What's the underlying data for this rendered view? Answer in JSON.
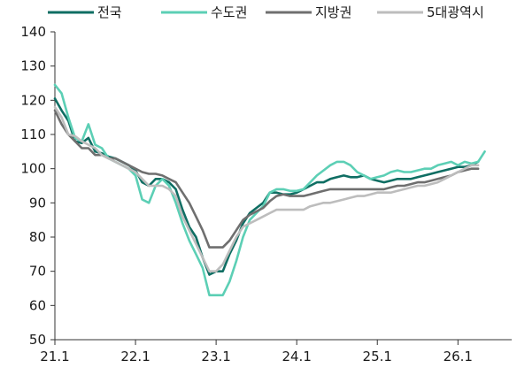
{
  "chart_data": {
    "type": "line",
    "title": "",
    "xlabel": "",
    "ylabel": "",
    "ylim": [
      50,
      140
    ],
    "yticks": [
      50,
      60,
      70,
      80,
      90,
      100,
      110,
      120,
      130,
      140
    ],
    "xlim": [
      0,
      68
    ],
    "xticks": [
      {
        "label": "21.1",
        "x": 0
      },
      {
        "label": "22.1",
        "x": 12
      },
      {
        "label": "23.1",
        "x": 24
      },
      {
        "label": "24.1",
        "x": 36
      },
      {
        "label": "25.1",
        "x": 48
      },
      {
        "label": "26.1",
        "x": 60
      }
    ],
    "grid": false,
    "legend_position": "top",
    "series": [
      {
        "name": "전국",
        "color": "#0f6e63",
        "points": [
          [
            0,
            120.5
          ],
          [
            1,
            117
          ],
          [
            2,
            114
          ],
          [
            3,
            108
          ],
          [
            4,
            107.5
          ],
          [
            5,
            109
          ],
          [
            6,
            105
          ],
          [
            7,
            104.5
          ],
          [
            8,
            103.5
          ],
          [
            9,
            103
          ],
          [
            10,
            102
          ],
          [
            11,
            101
          ],
          [
            12,
            99.5
          ],
          [
            13,
            96
          ],
          [
            14,
            95
          ],
          [
            15,
            97
          ],
          [
            16,
            97
          ],
          [
            17,
            96
          ],
          [
            18,
            94
          ],
          [
            19,
            88
          ],
          [
            20,
            83
          ],
          [
            21,
            80
          ],
          [
            22,
            74
          ],
          [
            23,
            69
          ],
          [
            24,
            70
          ],
          [
            25,
            70
          ],
          [
            26,
            75
          ],
          [
            27,
            79
          ],
          [
            28,
            84
          ],
          [
            29,
            87
          ],
          [
            30,
            88.5
          ],
          [
            31,
            90
          ],
          [
            32,
            93
          ],
          [
            33,
            93
          ],
          [
            34,
            92.5
          ],
          [
            35,
            92.5
          ],
          [
            36,
            93
          ],
          [
            37,
            94
          ],
          [
            38,
            95
          ],
          [
            39,
            96
          ],
          [
            40,
            96
          ],
          [
            41,
            97
          ],
          [
            42,
            97.5
          ],
          [
            43,
            98
          ],
          [
            44,
            97.5
          ],
          [
            45,
            97.5
          ],
          [
            46,
            98
          ],
          [
            47,
            97
          ],
          [
            48,
            96.5
          ],
          [
            49,
            96
          ],
          [
            50,
            96.5
          ],
          [
            51,
            97
          ],
          [
            52,
            97
          ],
          [
            53,
            97
          ],
          [
            54,
            97.5
          ],
          [
            55,
            98
          ],
          [
            56,
            98.5
          ],
          [
            57,
            99
          ],
          [
            58,
            99.5
          ],
          [
            59,
            100
          ],
          [
            60,
            100.5
          ],
          [
            61,
            100.5
          ],
          [
            62,
            101
          ],
          [
            63,
            102
          ]
        ]
      },
      {
        "name": "수도권",
        "color": "#5ccfb5",
        "points": [
          [
            0,
            124.5
          ],
          [
            1,
            122
          ],
          [
            2,
            115
          ],
          [
            3,
            109
          ],
          [
            4,
            108
          ],
          [
            5,
            113
          ],
          [
            6,
            107
          ],
          [
            7,
            106
          ],
          [
            8,
            103
          ],
          [
            9,
            102
          ],
          [
            10,
            101
          ],
          [
            11,
            100
          ],
          [
            12,
            98
          ],
          [
            13,
            91
          ],
          [
            14,
            90
          ],
          [
            15,
            95
          ],
          [
            16,
            97
          ],
          [
            17,
            95
          ],
          [
            18,
            90
          ],
          [
            19,
            84
          ],
          [
            20,
            79
          ],
          [
            21,
            75
          ],
          [
            22,
            71
          ],
          [
            23,
            63
          ],
          [
            24,
            63
          ],
          [
            25,
            63
          ],
          [
            26,
            67
          ],
          [
            27,
            73
          ],
          [
            28,
            80
          ],
          [
            29,
            85
          ],
          [
            30,
            87
          ],
          [
            31,
            89
          ],
          [
            32,
            93
          ],
          [
            33,
            94
          ],
          [
            34,
            94
          ],
          [
            35,
            93.5
          ],
          [
            36,
            93.5
          ],
          [
            37,
            94
          ],
          [
            38,
            96
          ],
          [
            39,
            98
          ],
          [
            40,
            99.5
          ],
          [
            41,
            101
          ],
          [
            42,
            102
          ],
          [
            43,
            102
          ],
          [
            44,
            101
          ],
          [
            45,
            99
          ],
          [
            46,
            98
          ],
          [
            47,
            97
          ],
          [
            48,
            97.5
          ],
          [
            49,
            98
          ],
          [
            50,
            99
          ],
          [
            51,
            99.5
          ],
          [
            52,
            99
          ],
          [
            53,
            99
          ],
          [
            54,
            99.5
          ],
          [
            55,
            100
          ],
          [
            56,
            100
          ],
          [
            57,
            101
          ],
          [
            58,
            101.5
          ],
          [
            59,
            102
          ],
          [
            60,
            101
          ],
          [
            61,
            102
          ],
          [
            62,
            101.5
          ],
          [
            63,
            102
          ],
          [
            64,
            105
          ]
        ]
      },
      {
        "name": "지방권",
        "color": "#6f6f6f",
        "points": [
          [
            0,
            117
          ],
          [
            1,
            113
          ],
          [
            2,
            110
          ],
          [
            3,
            108
          ],
          [
            4,
            106
          ],
          [
            5,
            106
          ],
          [
            6,
            104
          ],
          [
            7,
            104
          ],
          [
            8,
            103
          ],
          [
            9,
            103
          ],
          [
            10,
            102
          ],
          [
            11,
            101
          ],
          [
            12,
            100
          ],
          [
            13,
            99
          ],
          [
            14,
            98.5
          ],
          [
            15,
            98.5
          ],
          [
            16,
            98
          ],
          [
            17,
            97
          ],
          [
            18,
            96
          ],
          [
            19,
            93
          ],
          [
            20,
            90
          ],
          [
            21,
            86
          ],
          [
            22,
            82
          ],
          [
            23,
            77
          ],
          [
            24,
            77
          ],
          [
            25,
            77
          ],
          [
            26,
            79
          ],
          [
            27,
            82
          ],
          [
            28,
            85
          ],
          [
            29,
            86.5
          ],
          [
            30,
            87.5
          ],
          [
            31,
            88.5
          ],
          [
            32,
            90.5
          ],
          [
            33,
            92
          ],
          [
            34,
            92.5
          ],
          [
            35,
            92
          ],
          [
            36,
            92
          ],
          [
            37,
            92
          ],
          [
            38,
            92.5
          ],
          [
            39,
            93
          ],
          [
            40,
            93.5
          ],
          [
            41,
            94
          ],
          [
            42,
            94
          ],
          [
            43,
            94
          ],
          [
            44,
            94
          ],
          [
            45,
            94
          ],
          [
            46,
            94
          ],
          [
            47,
            94
          ],
          [
            48,
            94
          ],
          [
            49,
            94
          ],
          [
            50,
            94.5
          ],
          [
            51,
            95
          ],
          [
            52,
            95
          ],
          [
            53,
            95.5
          ],
          [
            54,
            96
          ],
          [
            55,
            96
          ],
          [
            56,
            96.5
          ],
          [
            57,
            97
          ],
          [
            58,
            97.5
          ],
          [
            59,
            98
          ],
          [
            60,
            99
          ],
          [
            61,
            99.5
          ],
          [
            62,
            100
          ],
          [
            63,
            100
          ]
        ]
      },
      {
        "name": "5대광역시",
        "color": "#bdbdbd",
        "points": [
          [
            0,
            118
          ],
          [
            1,
            115
          ],
          [
            2,
            110
          ],
          [
            3,
            109.5
          ],
          [
            4,
            108
          ],
          [
            5,
            107
          ],
          [
            6,
            106
          ],
          [
            7,
            104
          ],
          [
            8,
            103
          ],
          [
            9,
            102
          ],
          [
            10,
            101
          ],
          [
            11,
            100
          ],
          [
            12,
            99
          ],
          [
            13,
            97
          ],
          [
            14,
            95
          ],
          [
            15,
            95
          ],
          [
            16,
            95
          ],
          [
            17,
            94
          ],
          [
            18,
            92
          ],
          [
            19,
            86
          ],
          [
            20,
            82
          ],
          [
            21,
            78
          ],
          [
            22,
            74
          ],
          [
            23,
            70
          ],
          [
            24,
            70
          ],
          [
            25,
            72
          ],
          [
            26,
            76
          ],
          [
            27,
            80
          ],
          [
            28,
            83
          ],
          [
            29,
            84
          ],
          [
            30,
            85
          ],
          [
            31,
            86
          ],
          [
            32,
            87
          ],
          [
            33,
            88
          ],
          [
            34,
            88
          ],
          [
            35,
            88
          ],
          [
            36,
            88
          ],
          [
            37,
            88
          ],
          [
            38,
            89
          ],
          [
            39,
            89.5
          ],
          [
            40,
            90
          ],
          [
            41,
            90
          ],
          [
            42,
            90.5
          ],
          [
            43,
            91
          ],
          [
            44,
            91.5
          ],
          [
            45,
            92
          ],
          [
            46,
            92
          ],
          [
            47,
            92.5
          ],
          [
            48,
            93
          ],
          [
            49,
            93
          ],
          [
            50,
            93
          ],
          [
            51,
            93.5
          ],
          [
            52,
            94
          ],
          [
            53,
            94.5
          ],
          [
            54,
            95
          ],
          [
            55,
            95
          ],
          [
            56,
            95.5
          ],
          [
            57,
            96
          ],
          [
            58,
            97
          ],
          [
            59,
            98
          ],
          [
            60,
            99
          ],
          [
            61,
            100
          ],
          [
            62,
            101
          ],
          [
            63,
            101
          ]
        ]
      }
    ]
  }
}
